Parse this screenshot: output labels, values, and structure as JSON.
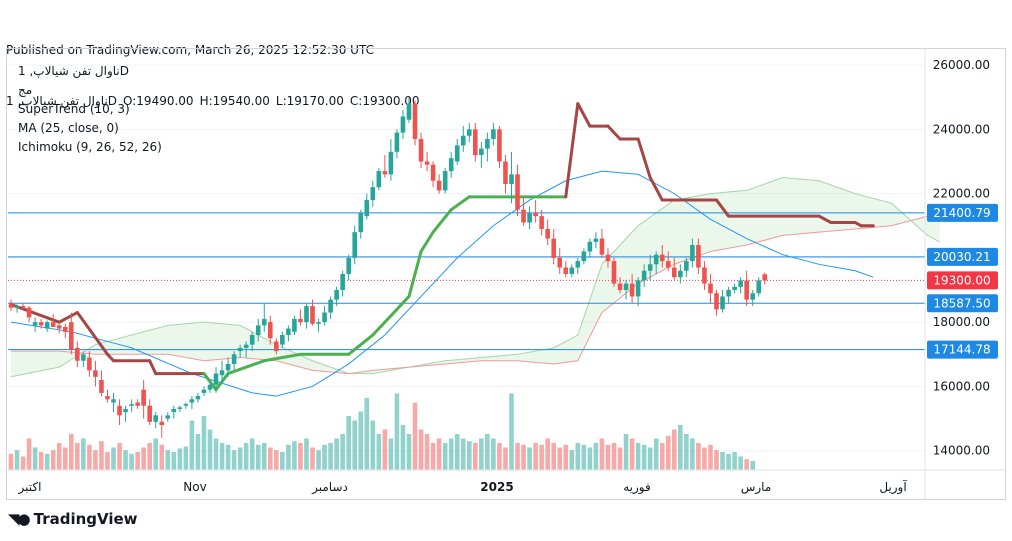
{
  "header": {
    "published": "Published on TradingView.com, March 26, 2025 12:52:30 UTC",
    "symbol": "ناوال تفن شیالاپ, 1D",
    "open": "O:19490.00",
    "high": "H:19540.00",
    "low": "L:19170.00",
    "close": "C:19300.00"
  },
  "legend": {
    "symbol_line": "ناوال تفن شیالاپ, 1D",
    "line2": "مج",
    "supertrend": "SuperTrend (10, 3)",
    "ma": "MA (25, close, 0)",
    "ichimoku": "Ichimoku (9, 26, 52, 26)"
  },
  "footer": {
    "brand": "TradingView"
  },
  "colors": {
    "up": "#26a69a",
    "down": "#ef5350",
    "supertrend_up": "#4caf50",
    "supertrend_down": "#a54646",
    "ma": "#2196f3",
    "level": "#1e88e5",
    "price": "#f23645"
  },
  "chart_data": {
    "type": "candlestick",
    "ylim": [
      13400,
      26500
    ],
    "y_ticks": [
      26000,
      24000,
      22000,
      20000,
      18000,
      16000,
      14000
    ],
    "y_tick_labels": [
      "26000.00",
      "24000.00",
      "22000.00",
      "20000.00",
      "18000.00",
      "16000.00",
      "14000.00"
    ],
    "x_labels": [
      "اکتبر",
      "Nov",
      "دسامبر",
      "2025",
      "فوریه",
      "مارس",
      "آوریل"
    ],
    "horizontal_levels": [
      21400.79,
      20030.21,
      18587.5,
      17144.78
    ],
    "level_labels": [
      "21400.79",
      "20030.21",
      "18587.50",
      "17144.78"
    ],
    "last_price": 19300,
    "last_price_label": "19300.00",
    "candles": [
      [
        18550,
        18700,
        18350,
        18450
      ],
      [
        18450,
        18550,
        18300,
        18500
      ],
      [
        18500,
        18600,
        18400,
        18450
      ],
      [
        18450,
        18500,
        18000,
        18150
      ],
      [
        17900,
        18150,
        17700,
        18000
      ],
      [
        18000,
        18100,
        17800,
        17900
      ],
      [
        17800,
        18050,
        17700,
        18000
      ],
      [
        18000,
        18250,
        17900,
        17850
      ],
      [
        17900,
        18000,
        17650,
        17800
      ],
      [
        17850,
        17950,
        17500,
        17700
      ],
      [
        18000,
        18300,
        17000,
        17150
      ],
      [
        17200,
        17400,
        16600,
        16800
      ],
      [
        16800,
        17100,
        16600,
        17000
      ],
      [
        16900,
        17100,
        16300,
        16500
      ],
      [
        16500,
        16800,
        16000,
        16300
      ],
      [
        16200,
        16500,
        15700,
        15800
      ],
      [
        15700,
        15900,
        15500,
        15600
      ],
      [
        15500,
        15800,
        15200,
        15600
      ],
      [
        15400,
        15600,
        14800,
        15100
      ],
      [
        15200,
        15400,
        14900,
        15300
      ],
      [
        15400,
        15600,
        15200,
        15450
      ],
      [
        15500,
        15600,
        15300,
        15400
      ],
      [
        15900,
        16200,
        15000,
        15400
      ],
      [
        15400,
        15600,
        14800,
        14900
      ],
      [
        14900,
        15200,
        14700,
        15100
      ],
      [
        14900,
        15100,
        14400,
        14800
      ],
      [
        15000,
        15200,
        14900,
        15100
      ],
      [
        15200,
        15400,
        15000,
        15300
      ],
      [
        15300,
        15400,
        15200,
        15350
      ],
      [
        15400,
        15500,
        15300,
        15450
      ],
      [
        15500,
        15700,
        15300,
        15600
      ],
      [
        15600,
        15800,
        15500,
        15700
      ],
      [
        15800,
        16000,
        15700,
        15900
      ],
      [
        15900,
        16100,
        15800,
        16050
      ],
      [
        16050,
        16600,
        15800,
        16400
      ],
      [
        16350,
        16800,
        16100,
        16500
      ],
      [
        16500,
        16900,
        16300,
        16700
      ],
      [
        16700,
        17100,
        16500,
        17000
      ],
      [
        17100,
        17300,
        16900,
        17200
      ],
      [
        17200,
        17400,
        16900,
        17300
      ],
      [
        17300,
        17700,
        17100,
        17600
      ],
      [
        17600,
        18100,
        17400,
        17900
      ],
      [
        17900,
        18600,
        17700,
        18100
      ],
      [
        18000,
        18200,
        17300,
        17500
      ],
      [
        17400,
        17500,
        17000,
        17100
      ],
      [
        17300,
        17700,
        17200,
        17600
      ],
      [
        17600,
        17900,
        17400,
        17800
      ],
      [
        17700,
        18200,
        17600,
        18100
      ],
      [
        18100,
        18400,
        17900,
        18000
      ],
      [
        18000,
        18600,
        17800,
        18500
      ],
      [
        18500,
        18700,
        17900,
        17950
      ],
      [
        17950,
        18100,
        17700,
        18000
      ],
      [
        18000,
        18500,
        17900,
        18300
      ],
      [
        18300,
        18800,
        18100,
        18700
      ],
      [
        18700,
        19100,
        18500,
        19000
      ],
      [
        19000,
        19600,
        18800,
        19500
      ],
      [
        19500,
        20100,
        19300,
        20000
      ],
      [
        20000,
        21000,
        19800,
        20800
      ],
      [
        20800,
        21500,
        20600,
        21400
      ],
      [
        21300,
        22000,
        21200,
        21800
      ],
      [
        21800,
        22400,
        21600,
        22200
      ],
      [
        22200,
        22800,
        22100,
        22700
      ],
      [
        22700,
        23200,
        22500,
        22600
      ],
      [
        22600,
        23700,
        22400,
        23300
      ],
      [
        23300,
        24000,
        23100,
        23900
      ],
      [
        23900,
        24600,
        23700,
        24400
      ],
      [
        24300,
        25000,
        24200,
        24800
      ],
      [
        24800,
        24900,
        23500,
        23700
      ],
      [
        23700,
        23900,
        22800,
        23000
      ],
      [
        23000,
        23300,
        22700,
        22900
      ],
      [
        22900,
        23000,
        22200,
        22400
      ],
      [
        22400,
        22600,
        22000,
        22100
      ],
      [
        22100,
        22800,
        22000,
        22700
      ],
      [
        22700,
        23300,
        22500,
        23100
      ],
      [
        23000,
        23700,
        22900,
        23500
      ],
      [
        23500,
        24100,
        23300,
        23800
      ],
      [
        23800,
        24200,
        23600,
        24000
      ],
      [
        24000,
        24200,
        23000,
        23200
      ],
      [
        23200,
        23600,
        22800,
        23400
      ],
      [
        23400,
        23900,
        23000,
        23700
      ],
      [
        23700,
        24200,
        23500,
        24000
      ],
      [
        24000,
        24100,
        22800,
        23000
      ],
      [
        23000,
        23200,
        22000,
        22300
      ],
      [
        22300,
        23300,
        21700,
        22600
      ],
      [
        22600,
        22900,
        21300,
        21500
      ],
      [
        21500,
        21900,
        21000,
        21100
      ],
      [
        21100,
        21600,
        20900,
        21400
      ],
      [
        21400,
        21800,
        21100,
        21300
      ],
      [
        21300,
        21500,
        20700,
        20900
      ],
      [
        20900,
        21200,
        20400,
        20600
      ],
      [
        20600,
        20900,
        19800,
        20000
      ],
      [
        20000,
        20300,
        19500,
        19700
      ],
      [
        19700,
        19900,
        19400,
        19500
      ],
      [
        19500,
        19800,
        19400,
        19700
      ],
      [
        19700,
        20000,
        19500,
        19900
      ],
      [
        19900,
        20300,
        19800,
        20200
      ],
      [
        20200,
        20600,
        20000,
        20500
      ],
      [
        20500,
        20800,
        20300,
        20600
      ],
      [
        20600,
        20900,
        20000,
        20100
      ],
      [
        20100,
        20300,
        19700,
        19900
      ],
      [
        19900,
        20000,
        19100,
        19200
      ],
      [
        19200,
        19400,
        18900,
        19000
      ],
      [
        19000,
        19300,
        18700,
        19200
      ],
      [
        19200,
        19500,
        18600,
        18800
      ],
      [
        18800,
        19400,
        18500,
        19300
      ],
      [
        19300,
        19800,
        19100,
        19600
      ],
      [
        19600,
        20100,
        19300,
        19800
      ],
      [
        19800,
        20200,
        19500,
        20100
      ],
      [
        20100,
        20400,
        19700,
        19900
      ],
      [
        19900,
        20200,
        19600,
        19700
      ],
      [
        19700,
        20000,
        19300,
        19400
      ],
      [
        19400,
        19800,
        19200,
        19600
      ],
      [
        19600,
        20000,
        19400,
        19900
      ],
      [
        19900,
        20600,
        19700,
        20400
      ],
      [
        20400,
        20600,
        19500,
        19700
      ],
      [
        19700,
        19900,
        19000,
        19200
      ],
      [
        19200,
        19500,
        18600,
        18900
      ],
      [
        18900,
        19000,
        18200,
        18400
      ],
      [
        18400,
        19000,
        18300,
        18800
      ],
      [
        18800,
        19100,
        18600,
        19000
      ],
      [
        19000,
        19200,
        18900,
        19100
      ],
      [
        19100,
        19400,
        18900,
        19300
      ],
      [
        19300,
        19600,
        18500,
        18700
      ],
      [
        18700,
        19000,
        18500,
        18900
      ],
      [
        18900,
        19400,
        18800,
        19300
      ],
      [
        19490,
        19540,
        19170,
        19300
      ]
    ],
    "volumes": [
      0.18,
      0.22,
      0.15,
      0.35,
      0.25,
      0.2,
      0.18,
      0.22,
      0.3,
      0.25,
      0.4,
      0.3,
      0.35,
      0.28,
      0.22,
      0.32,
      0.2,
      0.25,
      0.3,
      0.22,
      0.18,
      0.2,
      0.25,
      0.3,
      0.35,
      0.28,
      0.22,
      0.2,
      0.24,
      0.26,
      0.55,
      0.4,
      0.6,
      0.45,
      0.35,
      0.3,
      0.28,
      0.22,
      0.25,
      0.3,
      0.35,
      0.28,
      0.3,
      0.25,
      0.22,
      0.2,
      0.28,
      0.32,
      0.3,
      0.35,
      0.25,
      0.22,
      0.28,
      0.3,
      0.35,
      0.4,
      0.6,
      0.55,
      0.65,
      0.8,
      0.55,
      0.4,
      0.45,
      0.35,
      0.85,
      0.5,
      0.4,
      0.75,
      0.45,
      0.4,
      0.3,
      0.35,
      0.3,
      0.35,
      0.4,
      0.35,
      0.32,
      0.3,
      0.35,
      0.4,
      0.35,
      0.3,
      0.25,
      0.85,
      0.3,
      0.28,
      0.25,
      0.3,
      0.28,
      0.35,
      0.3,
      0.25,
      0.28,
      0.22,
      0.3,
      0.28,
      0.25,
      0.3,
      0.35,
      0.28,
      0.3,
      0.25,
      0.4,
      0.35,
      0.3,
      0.28,
      0.25,
      0.35,
      0.3,
      0.38,
      0.45,
      0.5,
      0.4,
      0.35,
      0.3,
      0.25,
      0.28,
      0.22,
      0.2,
      0.18,
      0.2,
      0.15,
      0.12,
      0.1
    ],
    "supertrend": [
      [
        0,
        18550,
        "down"
      ],
      [
        8,
        18000,
        "down"
      ],
      [
        11,
        18300,
        "down"
      ],
      [
        16,
        17000,
        "down"
      ],
      [
        17,
        16800,
        "down"
      ],
      [
        23,
        16800,
        "down"
      ],
      [
        24,
        16400,
        "down"
      ],
      [
        32,
        16400,
        "down"
      ],
      [
        34,
        15900,
        "up"
      ],
      [
        36,
        16400,
        "up"
      ],
      [
        42,
        16800,
        "up"
      ],
      [
        48,
        17000,
        "up"
      ],
      [
        56,
        17000,
        "up"
      ],
      [
        60,
        17600,
        "up"
      ],
      [
        66,
        18800,
        "up"
      ],
      [
        68,
        20200,
        "up"
      ],
      [
        70,
        20800,
        "up"
      ],
      [
        73,
        21500,
        "up"
      ],
      [
        76,
        21900,
        "up"
      ],
      [
        80,
        21900,
        "up"
      ],
      [
        92,
        21900,
        "up"
      ],
      [
        94,
        24800,
        "down"
      ],
      [
        96,
        24100,
        "down"
      ],
      [
        99,
        24100,
        "down"
      ],
      [
        101,
        23700,
        "down"
      ],
      [
        104,
        23700,
        "down"
      ],
      [
        106,
        22500,
        "down"
      ],
      [
        108,
        21800,
        "down"
      ],
      [
        117,
        21800,
        "down"
      ],
      [
        119,
        21300,
        "down"
      ],
      [
        134,
        21300,
        "down"
      ],
      [
        136,
        21100,
        "down"
      ],
      [
        140,
        21100,
        "down"
      ],
      [
        141,
        21000,
        "down"
      ],
      [
        143,
        21000,
        "down"
      ]
    ],
    "ma": [
      [
        0,
        18000
      ],
      [
        10,
        17700
      ],
      [
        20,
        17200
      ],
      [
        30,
        16400
      ],
      [
        40,
        15800
      ],
      [
        44,
        15700
      ],
      [
        50,
        16000
      ],
      [
        56,
        16700
      ],
      [
        62,
        17600
      ],
      [
        68,
        18800
      ],
      [
        74,
        20000
      ],
      [
        80,
        21000
      ],
      [
        86,
        21800
      ],
      [
        92,
        22400
      ],
      [
        98,
        22700
      ],
      [
        104,
        22600
      ],
      [
        110,
        22000
      ],
      [
        116,
        21200
      ],
      [
        122,
        20600
      ],
      [
        128,
        20100
      ],
      [
        134,
        19800
      ],
      [
        140,
        19600
      ],
      [
        143,
        19400
      ]
    ],
    "cloud_a": [
      [
        0,
        16300
      ],
      [
        8,
        16600
      ],
      [
        14,
        17300
      ],
      [
        20,
        17600
      ],
      [
        26,
        17900
      ],
      [
        32,
        18000
      ],
      [
        38,
        17900
      ],
      [
        44,
        17300
      ],
      [
        50,
        16800
      ],
      [
        56,
        16400
      ],
      [
        60,
        16400
      ],
      [
        66,
        16600
      ],
      [
        72,
        16800
      ],
      [
        78,
        16900
      ],
      [
        84,
        17000
      ],
      [
        90,
        17200
      ],
      [
        94,
        17600
      ],
      [
        98,
        19800
      ],
      [
        104,
        21000
      ],
      [
        110,
        21800
      ],
      [
        116,
        22000
      ],
      [
        122,
        22100
      ],
      [
        128,
        22500
      ],
      [
        134,
        22400
      ],
      [
        140,
        22000
      ],
      [
        146,
        21700
      ],
      [
        152,
        20700
      ],
      [
        154,
        20500
      ]
    ],
    "cloud_b": [
      [
        0,
        17100
      ],
      [
        8,
        17100
      ],
      [
        14,
        17000
      ],
      [
        20,
        17000
      ],
      [
        26,
        17000
      ],
      [
        32,
        16800
      ],
      [
        38,
        16900
      ],
      [
        44,
        16800
      ],
      [
        50,
        16500
      ],
      [
        56,
        16400
      ],
      [
        60,
        16500
      ],
      [
        66,
        16600
      ],
      [
        72,
        16700
      ],
      [
        78,
        16800
      ],
      [
        84,
        16800
      ],
      [
        90,
        16700
      ],
      [
        94,
        16800
      ],
      [
        98,
        18300
      ],
      [
        104,
        19200
      ],
      [
        110,
        19800
      ],
      [
        116,
        20200
      ],
      [
        122,
        20400
      ],
      [
        128,
        20700
      ],
      [
        134,
        20800
      ],
      [
        140,
        20900
      ],
      [
        146,
        21000
      ],
      [
        152,
        21300
      ],
      [
        154,
        21300
      ]
    ]
  }
}
